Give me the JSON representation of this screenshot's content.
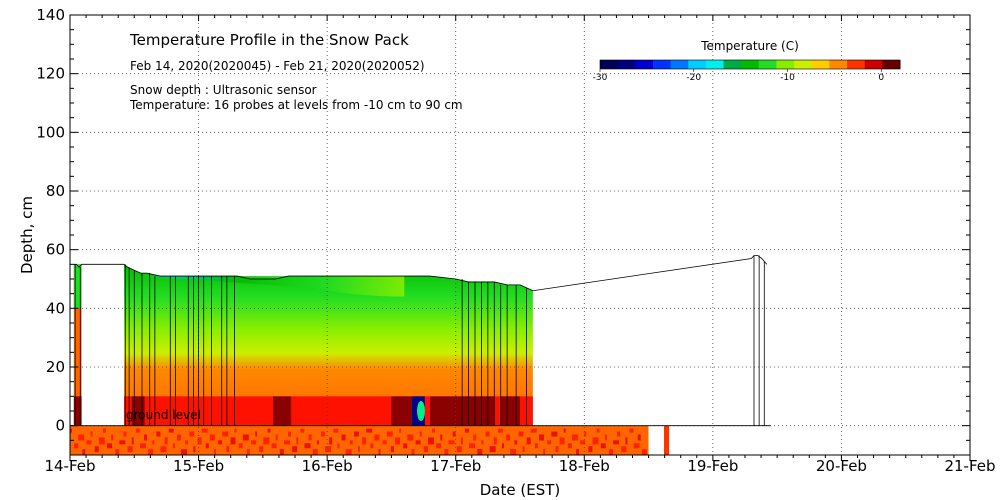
{
  "chart_data": {
    "type": "heatmap",
    "title": "Temperature Profile in the Snow Pack",
    "subtitle": "Feb 14, 2020(2020045) - Feb 21, 2020(2020052)",
    "notes": [
      "Snow depth : Ultrasonic sensor",
      "Temperature: 16 probes at levels from -10 cm to 90 cm"
    ],
    "ground_label": "ground level",
    "xlabel": "Date (EST)",
    "ylabel": "Depth, cm",
    "x_tick_labels": [
      "14-Feb",
      "15-Feb",
      "16-Feb",
      "17-Feb",
      "18-Feb",
      "19-Feb",
      "20-Feb",
      "21-Feb"
    ],
    "xlim_days": [
      0,
      7
    ],
    "ylim": [
      -10,
      140
    ],
    "y_ticks": [
      0,
      20,
      40,
      60,
      80,
      100,
      120,
      140
    ],
    "grid": true,
    "colorbar": {
      "title": "Temperature (C)",
      "range": [
        -30,
        2
      ],
      "tick_values": [
        -30,
        -20,
        -10,
        0
      ],
      "tick_labels": [
        "-30",
        "-20",
        "-10",
        "0"
      ],
      "colors": [
        "#000055",
        "#00007f",
        "#0000cc",
        "#0033ff",
        "#0077ff",
        "#00ccff",
        "#00eeee",
        "#00aa44",
        "#00bb00",
        "#22dd22",
        "#88ee00",
        "#ccee00",
        "#ffcc00",
        "#ff8800",
        "#ff3300",
        "#cc0000",
        "#660000"
      ]
    },
    "snow_depth_series": {
      "name": "Snow depth",
      "x_days": [
        0.03,
        0.05,
        0.07,
        0.09,
        0.42,
        0.45,
        0.5,
        0.55,
        0.6,
        0.7,
        0.8,
        0.9,
        1.0,
        1.1,
        1.2,
        1.3,
        1.4,
        1.5,
        1.6,
        1.7,
        1.8,
        1.9,
        2.0,
        2.2,
        2.4,
        2.6,
        2.8,
        3.0,
        3.1,
        3.2,
        3.3,
        3.4,
        3.5,
        3.55,
        3.6,
        5.3,
        5.32,
        5.35,
        5.38,
        5.4,
        5.42
      ],
      "depth_cm": [
        55,
        55,
        54,
        55,
        55,
        54,
        53,
        52,
        52,
        51,
        51,
        51,
        51,
        51,
        51,
        51,
        50,
        50,
        50,
        51,
        51,
        51,
        51,
        51,
        51,
        51,
        51,
        50,
        49,
        49,
        49,
        48,
        48,
        47,
        46,
        57,
        58,
        58,
        57,
        56,
        55
      ]
    },
    "temperature_layers": [
      {
        "level_cm_from": -10,
        "level_cm_to": 0,
        "temp_c": -1
      },
      {
        "level_cm_from": 0,
        "level_cm_to": 10,
        "temp_c": 0
      },
      {
        "level_cm_from": 10,
        "level_cm_to": 20,
        "temp_c": -2
      },
      {
        "level_cm_from": 20,
        "level_cm_to": 30,
        "temp_c": -4
      },
      {
        "level_cm_from": 30,
        "level_cm_to": 40,
        "temp_c": -8
      },
      {
        "level_cm_from": 40,
        "level_cm_to": 50,
        "temp_c": -12
      }
    ]
  }
}
